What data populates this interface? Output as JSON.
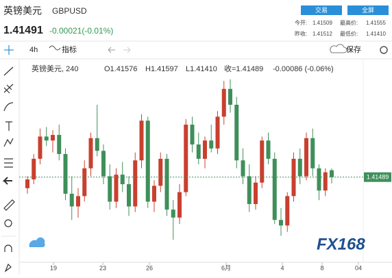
{
  "header": {
    "name": "英镑美元",
    "symbol": "GBPUSD",
    "buttons": [
      "交易",
      "全屏"
    ],
    "price": "1.41491",
    "change": "-0.00021(-0.01%)",
    "stats": [
      [
        "今开:",
        "1.41509",
        "最高价:",
        "1.41555"
      ],
      [
        "昨收:",
        "1.41512",
        "最低价:",
        "1.41410"
      ]
    ]
  },
  "toolbar": {
    "interval": "4h",
    "indicators": "指标",
    "save": "保存"
  },
  "logo": "FX168",
  "chart_data": {
    "type": "candlestick",
    "legend": {
      "name": "英镑美元, 240",
      "open": "O1.41576",
      "high": "H1.41597",
      "low": "L1.41410",
      "close": "收=1.41489",
      "change": "-0.00086 (-0.06%)"
    },
    "x_labels": [
      "19",
      "23",
      "26",
      "6月",
      "4",
      "8",
      "04"
    ],
    "ylim": [
      1.404,
      1.429
    ],
    "last_price": 1.41489,
    "up_color": "#c8402f",
    "down_color": "#3f8f5a",
    "candles": [
      [
        1.4135,
        1.415,
        1.4128,
        1.4146
      ],
      [
        1.4146,
        1.4178,
        1.414,
        1.4172
      ],
      [
        1.4172,
        1.421,
        1.4165,
        1.42
      ],
      [
        1.42,
        1.4212,
        1.4188,
        1.4195
      ],
      [
        1.4195,
        1.4208,
        1.418,
        1.4202
      ],
      [
        1.4202,
        1.4215,
        1.417,
        1.4178
      ],
      [
        1.4178,
        1.4185,
        1.412,
        1.4128
      ],
      [
        1.4128,
        1.415,
        1.4095,
        1.4112
      ],
      [
        1.4112,
        1.4135,
        1.4098,
        1.4125
      ],
      [
        1.4125,
        1.417,
        1.4118,
        1.416
      ],
      [
        1.416,
        1.4205,
        1.415,
        1.4198
      ],
      [
        1.4198,
        1.424,
        1.4175,
        1.4182
      ],
      [
        1.4182,
        1.419,
        1.414,
        1.415
      ],
      [
        1.415,
        1.4165,
        1.4108,
        1.4118
      ],
      [
        1.4118,
        1.416,
        1.411,
        1.4152
      ],
      [
        1.4152,
        1.4168,
        1.413,
        1.414
      ],
      [
        1.414,
        1.415,
        1.41,
        1.4112
      ],
      [
        1.4112,
        1.418,
        1.4105,
        1.417
      ],
      [
        1.417,
        1.4228,
        1.416,
        1.422
      ],
      [
        1.422,
        1.4225,
        1.411,
        1.4118
      ],
      [
        1.4118,
        1.4145,
        1.4105,
        1.4138
      ],
      [
        1.4138,
        1.418,
        1.413,
        1.4172
      ],
      [
        1.4172,
        1.4178,
        1.41,
        1.4108
      ],
      [
        1.4108,
        1.412,
        1.407,
        1.4098
      ],
      [
        1.4098,
        1.414,
        1.409,
        1.413
      ],
      [
        1.413,
        1.4222,
        1.4125,
        1.4215
      ],
      [
        1.4215,
        1.4225,
        1.418,
        1.419
      ],
      [
        1.419,
        1.4205,
        1.4165,
        1.4172
      ],
      [
        1.4172,
        1.42,
        1.416,
        1.4195
      ],
      [
        1.4195,
        1.4215,
        1.418,
        1.4185
      ],
      [
        1.4185,
        1.4232,
        1.4178,
        1.4225
      ],
      [
        1.4225,
        1.427,
        1.4215,
        1.426
      ],
      [
        1.426,
        1.4272,
        1.423,
        1.424
      ],
      [
        1.424,
        1.425,
        1.416,
        1.417
      ],
      [
        1.417,
        1.4185,
        1.414,
        1.415
      ],
      [
        1.415,
        1.4165,
        1.4105,
        1.4115
      ],
      [
        1.4115,
        1.415,
        1.4108,
        1.4142
      ],
      [
        1.4142,
        1.42,
        1.4135,
        1.4195
      ],
      [
        1.4195,
        1.4205,
        1.4165,
        1.4172
      ],
      [
        1.4172,
        1.418,
        1.409,
        1.4095
      ],
      [
        1.4095,
        1.411,
        1.4075,
        1.4088
      ],
      [
        1.4088,
        1.413,
        1.408,
        1.4125
      ],
      [
        1.4125,
        1.418,
        1.4118,
        1.4172
      ],
      [
        1.4172,
        1.4185,
        1.414,
        1.415
      ],
      [
        1.415,
        1.4205,
        1.4145,
        1.4198
      ],
      [
        1.4198,
        1.421,
        1.415,
        1.416
      ],
      [
        1.416,
        1.4165,
        1.412,
        1.4132
      ],
      [
        1.4132,
        1.416,
        1.4125,
        1.4155
      ],
      [
        1.41576,
        1.41597,
        1.4141,
        1.41489
      ]
    ]
  }
}
